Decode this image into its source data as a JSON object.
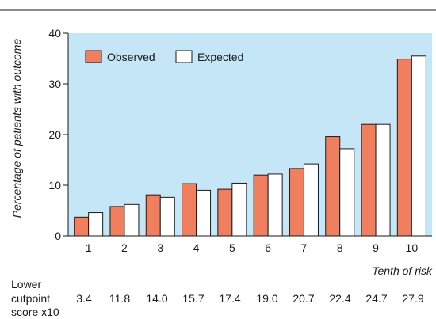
{
  "chart_data": {
    "type": "bar",
    "categories": [
      "1",
      "2",
      "3",
      "4",
      "5",
      "6",
      "7",
      "8",
      "9",
      "10"
    ],
    "series": [
      {
        "name": "Observed",
        "values": [
          3.7,
          5.8,
          8.1,
          10.3,
          9.2,
          12.0,
          13.3,
          19.6,
          22.0,
          34.9
        ],
        "color": "#f07f5f"
      },
      {
        "name": "Expected",
        "values": [
          4.6,
          6.2,
          7.6,
          9.0,
          10.4,
          12.2,
          14.2,
          17.2,
          22.0,
          35.5
        ],
        "color": "#ffffff"
      }
    ],
    "ylabel": "Percentage of patients with outcome",
    "xlabel": "Tenth of risk",
    "ylim": [
      0,
      40
    ],
    "yticks": [
      0,
      10,
      20,
      30,
      40
    ],
    "legend_position": "top-left",
    "plot_background": "#c5e6f6",
    "bar_outline": "#1a1a1a",
    "cutpoints": {
      "label_lines": [
        "Lower",
        "cutpoint",
        "score x10"
      ],
      "values": [
        "3.4",
        "11.8",
        "14.0",
        "15.7",
        "17.4",
        "19.0",
        "20.7",
        "22.4",
        "24.7",
        "27.9"
      ]
    }
  }
}
